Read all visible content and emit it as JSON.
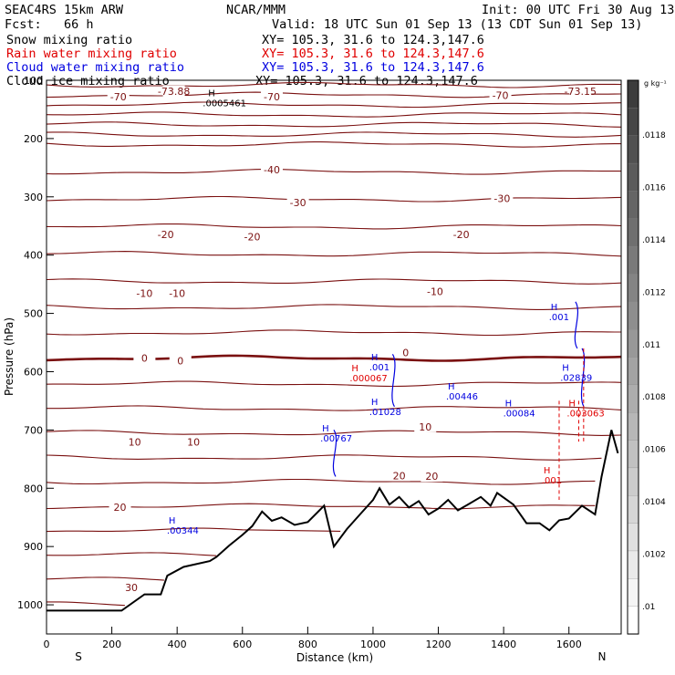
{
  "header": {
    "model": "SEAC4RS 15km ARW",
    "org": "NCAR/MMM",
    "init": "Init: 00 UTC Fri 30 Aug 13",
    "fcst": "Fcst:   66 h",
    "valid": "Valid: 18 UTC Sun 01 Sep 13 (13 CDT Sun 01 Sep 13)",
    "fields": [
      {
        "name": "Snow mixing ratio",
        "xy": "XY= 105.3, 31.6 to 124.3,147.6",
        "color": "#000000"
      },
      {
        "name": "Rain water mixing ratio",
        "xy": "XY= 105.3, 31.6 to 124.3,147.6",
        "color": "#e00000"
      },
      {
        "name": "Cloud water mixing ratio",
        "xy": "XY= 105.3, 31.6 to 124.3,147.6",
        "color": "#0000e0"
      },
      {
        "name": "Cloud ice mixing ratio",
        "xy": "XY= 105.3, 31.6 to 124.3,147.6",
        "color": "#000000"
      }
    ]
  },
  "chart_data": {
    "type": "cross-section",
    "xlabel": "Distance (km)",
    "ylabel": "Pressure (hPa)",
    "xlim": [
      0,
      1760
    ],
    "ylim": [
      1050,
      100
    ],
    "x_ticks": [
      0,
      200,
      400,
      600,
      800,
      1000,
      1200,
      1400,
      1600
    ],
    "y_ticks": [
      100,
      200,
      300,
      400,
      500,
      600,
      700,
      800,
      900,
      1000
    ],
    "y_tick_labels": [
      "100",
      "200",
      "300",
      "400",
      "500",
      "600",
      "700",
      "800",
      "900",
      "1000"
    ],
    "end_labels": {
      "left": "S",
      "right": "N"
    },
    "isotherm_color": "#7a1010",
    "isotherm_spacing_c": 5,
    "isotherm_labels": [
      {
        "text": "-73.88",
        "x": 390,
        "p": 120
      },
      {
        "text": "-70",
        "x": 220,
        "p": 130
      },
      {
        "text": "-70",
        "x": 690,
        "p": 130
      },
      {
        "text": "-70",
        "x": 1390,
        "p": 127
      },
      {
        "text": "-73.15",
        "x": 1635,
        "p": 120
      },
      {
        "text": "-40",
        "x": 690,
        "p": 255
      },
      {
        "text": "-30",
        "x": 770,
        "p": 311
      },
      {
        "text": "-30",
        "x": 1395,
        "p": 304
      },
      {
        "text": "-20",
        "x": 365,
        "p": 366
      },
      {
        "text": "-20",
        "x": 630,
        "p": 370
      },
      {
        "text": "-20",
        "x": 1270,
        "p": 366
      },
      {
        "text": "-10",
        "x": 300,
        "p": 467
      },
      {
        "text": "-10",
        "x": 400,
        "p": 467
      },
      {
        "text": "-10",
        "x": 1190,
        "p": 464
      },
      {
        "text": "0",
        "x": 300,
        "p": 578
      },
      {
        "text": "0",
        "x": 410,
        "p": 583
      },
      {
        "text": "0",
        "x": 1100,
        "p": 569
      },
      {
        "text": "10",
        "x": 270,
        "p": 722
      },
      {
        "text": "10",
        "x": 450,
        "p": 722
      },
      {
        "text": "10",
        "x": 1160,
        "p": 696
      },
      {
        "text": "20",
        "x": 1080,
        "p": 780
      },
      {
        "text": "20",
        "x": 1180,
        "p": 781
      },
      {
        "text": "20",
        "x": 225,
        "p": 834
      },
      {
        "text": "30",
        "x": 260,
        "p": 972
      }
    ],
    "terrain_km": [
      0,
      230,
      300,
      350,
      370,
      420,
      500,
      520,
      560,
      600,
      630,
      660,
      690,
      720,
      760,
      800,
      850,
      880,
      920,
      960,
      1000,
      1020,
      1050,
      1080,
      1110,
      1140,
      1170,
      1200,
      1230,
      1260,
      1290,
      1330,
      1360,
      1380,
      1430,
      1470,
      1510,
      1540,
      1570,
      1600,
      1640,
      1680,
      1700,
      1730,
      1750
    ],
    "terrain_hpa": [
      1010,
      1010,
      982,
      982,
      950,
      935,
      925,
      918,
      898,
      880,
      865,
      840,
      856,
      850,
      863,
      858,
      830,
      900,
      870,
      845,
      820,
      800,
      828,
      815,
      833,
      822,
      845,
      835,
      820,
      838,
      828,
      815,
      830,
      808,
      828,
      860,
      860,
      872,
      855,
      852,
      830,
      845,
      780,
      700,
      740
    ],
    "cloud_water_labels": [
      {
        "text": ".00344",
        "x": 430,
        "p": 873
      },
      {
        "text": ".00767",
        "x": 900,
        "p": 715
      },
      {
        "text": ".01028",
        "x": 1050,
        "p": 670
      },
      {
        "text": ".001",
        "x": 1050,
        "p": 593
      },
      {
        "text": ".00446",
        "x": 1285,
        "p": 643
      },
      {
        "text": ".00084",
        "x": 1460,
        "p": 672
      },
      {
        "text": ".02839",
        "x": 1635,
        "p": 611
      },
      {
        "text": ".001",
        "x": 1600,
        "p": 507
      }
    ],
    "rain_water_labels": [
      {
        "text": ".000067",
        "x": 990,
        "p": 612
      },
      {
        "text": ".003063",
        "x": 1655,
        "p": 672
      },
      {
        "text": ".001",
        "x": 1578,
        "p": 787
      }
    ],
    "snow_labels": [
      {
        "text": ".0005461",
        "x": 540,
        "p": 140
      }
    ],
    "high_marker": "H",
    "colorbar": {
      "title": "g kg⁻¹",
      "labels": [
        ".0118",
        ".0116",
        ".0114",
        ".0112",
        ".011",
        ".0108",
        ".0106",
        ".0104",
        ".0102",
        ".01"
      ]
    }
  }
}
